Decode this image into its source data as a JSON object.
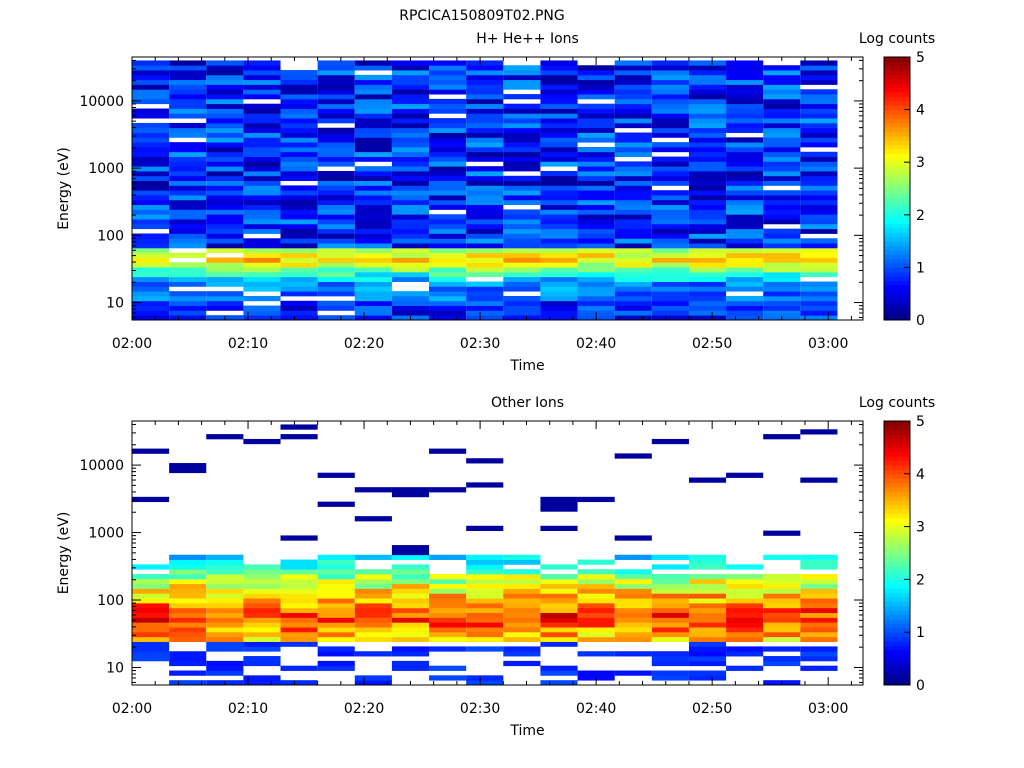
{
  "page_title": "RPCICA150809T02.PNG",
  "chart_data": [
    {
      "type": "heatmap",
      "title": "H+ He++ Ions",
      "xlabel": "Time",
      "ylabel": "Energy (eV)",
      "x_ticks": [
        "02:00",
        "02:10",
        "02:20",
        "02:30",
        "02:40",
        "02:50",
        "03:00"
      ],
      "x_range_minutes": [
        0,
        63
      ],
      "y_scale": "log",
      "y_ticks": [
        10,
        100,
        1000,
        10000
      ],
      "y_tick_labels": [
        "10",
        "100",
        "1000",
        "10000"
      ],
      "y_range": [
        5.5,
        45000
      ],
      "time_bins_start_minutes": [
        0.0,
        3.2,
        6.4,
        9.6,
        12.8,
        16.0,
        19.2,
        22.4,
        25.6,
        28.8,
        32.0,
        35.2,
        38.4,
        41.6,
        44.8,
        48.0,
        51.2,
        54.4,
        57.6
      ],
      "bin_width_minutes": 3.2,
      "profile": "proton",
      "colorbar": {
        "label": "Log counts",
        "min": 0,
        "max": 5,
        "ticks": [
          0,
          1,
          2,
          3,
          4,
          5
        ],
        "colormap": "jet"
      }
    },
    {
      "type": "heatmap",
      "title": "Other Ions",
      "xlabel": "Time",
      "ylabel": "Energy (eV)",
      "x_ticks": [
        "02:00",
        "02:10",
        "02:20",
        "02:30",
        "02:40",
        "02:50",
        "03:00"
      ],
      "x_range_minutes": [
        0,
        63
      ],
      "y_scale": "log",
      "y_ticks": [
        10,
        100,
        1000,
        10000
      ],
      "y_tick_labels": [
        "10",
        "100",
        "1000",
        "10000"
      ],
      "y_range": [
        5.5,
        45000
      ],
      "time_bins_start_minutes": [
        0.0,
        3.2,
        6.4,
        9.6,
        12.8,
        16.0,
        19.2,
        22.4,
        25.6,
        28.8,
        32.0,
        35.2,
        38.4,
        41.6,
        44.8,
        48.0,
        51.2,
        54.4,
        57.6
      ],
      "bin_width_minutes": 3.2,
      "profile": "heavy",
      "colorbar": {
        "label": "Log counts",
        "min": 0,
        "max": 5,
        "ticks": [
          0,
          1,
          2,
          3,
          4,
          5
        ],
        "colormap": "jet"
      }
    }
  ]
}
